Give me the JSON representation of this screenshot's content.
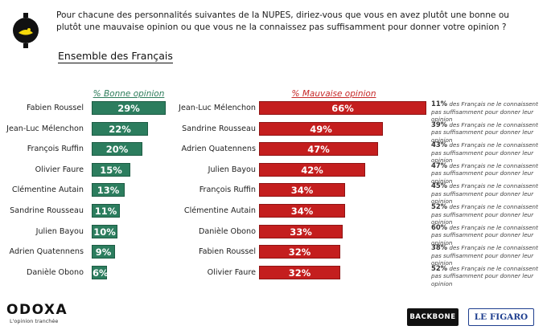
{
  "question": "Pour chacune des personnalités suivantes de la NUPES, diriez-vous que vous en avez plutôt une bonne ou plutôt une mauvaise opinion ou que vous ne la connaissez pas suffisamment pour donner votre opinion ?",
  "subtitle": "Ensemble des Français",
  "colors": {
    "good": "#2c7d5e",
    "bad": "#c41e1e"
  },
  "chart_data": [
    {
      "type": "bar",
      "orientation": "horizontal",
      "title": "% Bonne opinion",
      "categories": [
        "Fabien Roussel",
        "Jean-Luc Mélenchon",
        "François Ruffin",
        "Olivier Faure",
        "Clémentine Autain",
        "Sandrine Rousseau",
        "Julien Bayou",
        "Adrien Quatennens",
        "Danièle Obono"
      ],
      "values": [
        29,
        22,
        20,
        15,
        13,
        11,
        10,
        9,
        6
      ],
      "labels": [
        "29%",
        "22%",
        "20%",
        "15%",
        "13%",
        "11%",
        "10%",
        "9%",
        "6%"
      ],
      "unit": "%"
    },
    {
      "type": "bar",
      "orientation": "horizontal",
      "title": "% Mauvaise opinion",
      "categories": [
        "Jean-Luc Mélenchon",
        "Sandrine Rousseau",
        "Adrien Quatennens",
        "Julien Bayou",
        "François Ruffin",
        "Clémentine Autain",
        "Danièle Obono",
        "Fabien Roussel",
        "Olivier Faure"
      ],
      "values": [
        66,
        49,
        47,
        42,
        34,
        34,
        33,
        32,
        32
      ],
      "labels": [
        "66%",
        "49%",
        "47%",
        "42%",
        "34%",
        "34%",
        "33%",
        "32%",
        "32%"
      ],
      "unit": "%",
      "not_known_pct": [
        "11%",
        "39%",
        "43%",
        "47%",
        "45%",
        "52%",
        "60%",
        "38%",
        "52%"
      ],
      "not_known_text": "des Français ne le connaissent pas suffisamment pour donner leur opinion"
    }
  ],
  "footer": {
    "brand": "ODOXA",
    "tagline": "L'opinion tranchée",
    "partner1": "BACKBONE",
    "partner2": "LE FIGARO"
  }
}
